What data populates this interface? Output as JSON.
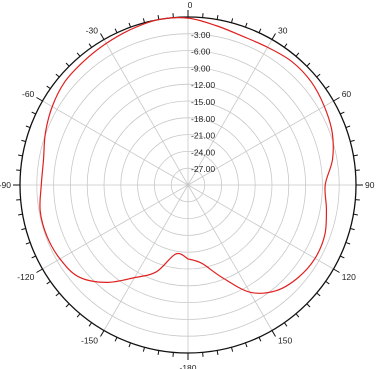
{
  "chart_data": {
    "type": "polar-line",
    "angle_unit": "degrees",
    "angle_direction": "clockwise",
    "angle_zero": "top",
    "angle_labels": [
      {
        "angle": 0,
        "label": "0"
      },
      {
        "angle": 30,
        "label": "30"
      },
      {
        "angle": 60,
        "label": "60"
      },
      {
        "angle": 90,
        "label": "90"
      },
      {
        "angle": 120,
        "label": "120"
      },
      {
        "angle": 150,
        "label": "150"
      },
      {
        "angle": 180,
        "label": "-180"
      },
      {
        "angle": -150,
        "label": "-150"
      },
      {
        "angle": -120,
        "label": "-120"
      },
      {
        "angle": -90,
        "label": "-90"
      },
      {
        "angle": -60,
        "label": "-60"
      },
      {
        "angle": -30,
        "label": "-30"
      }
    ],
    "radial_range": [
      -30,
      0
    ],
    "radial_rings": [
      0,
      -3,
      -6,
      -9,
      -12,
      -15,
      -18,
      -21,
      -24,
      -27,
      -30
    ],
    "radial_labels": [
      "-3.00",
      "-6.00",
      "-9.00",
      "-12.00",
      "-15.00",
      "-18.00",
      "-21.00",
      "-24.00",
      "-27.00"
    ],
    "grid": true,
    "series": [
      {
        "color": "#e02020",
        "points": [
          [
            -180,
            -16.8
          ],
          [
            -170,
            -17.5
          ],
          [
            -160,
            -13.5
          ],
          [
            -150,
            -10.9
          ],
          [
            -140,
            -7.3
          ],
          [
            -130,
            -4.5
          ],
          [
            -120,
            -3.6
          ],
          [
            -110,
            -3.2
          ],
          [
            -100,
            -3.2
          ],
          [
            -90,
            -3.8
          ],
          [
            -80,
            -3.8
          ],
          [
            -70,
            -2.9
          ],
          [
            -60,
            -2.0
          ],
          [
            -50,
            -1.3
          ],
          [
            -40,
            -1.1
          ],
          [
            -30,
            -0.8
          ],
          [
            -20,
            -0.4
          ],
          [
            -10,
            0
          ],
          [
            0,
            -0.2
          ],
          [
            10,
            -1.1
          ],
          [
            20,
            -1.7
          ],
          [
            30,
            -1.6
          ],
          [
            40,
            -1.2
          ],
          [
            50,
            -1.3
          ],
          [
            60,
            -1.9
          ],
          [
            70,
            -2.6
          ],
          [
            80,
            -3.8
          ],
          [
            90,
            -5.5
          ],
          [
            100,
            -4.9
          ],
          [
            110,
            -4.0
          ],
          [
            120,
            -3.8
          ],
          [
            130,
            -4.3
          ],
          [
            140,
            -5.4
          ],
          [
            150,
            -7.9
          ],
          [
            160,
            -12.5
          ],
          [
            170,
            -15.8
          ],
          [
            180,
            -16.8
          ]
        ]
      }
    ]
  }
}
